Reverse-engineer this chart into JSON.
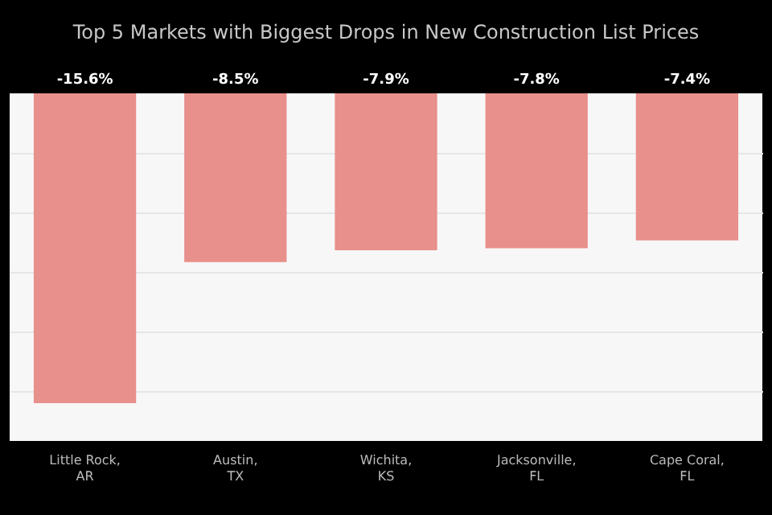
{
  "chart_data": {
    "type": "bar",
    "title": "Top 5 Markets with Biggest Drops in New Construction List Prices",
    "categories": [
      "Little Rock, AR",
      "Austin, TX",
      "Wichita, KS",
      "Jacksonville, FL",
      "Cape Coral, FL"
    ],
    "values": [
      -15.6,
      -8.5,
      -7.9,
      -7.8,
      -7.4
    ],
    "color": "#e8908c",
    "value_labels": [
      "-15.6%",
      "-8.5%",
      "-7.9%",
      "-7.8%",
      "-7.4%"
    ],
    "ylim": [
      -17.5,
      0
    ],
    "yticks": [
      {
        "value": -15,
        "label": null
      },
      {
        "value": -12,
        "label": null
      },
      {
        "value": -9,
        "label": null
      },
      {
        "value": -6,
        "label": null
      },
      {
        "value": -3,
        "label": null
      }
    ],
    "grid": "y",
    "tick_labels": "x"
  }
}
